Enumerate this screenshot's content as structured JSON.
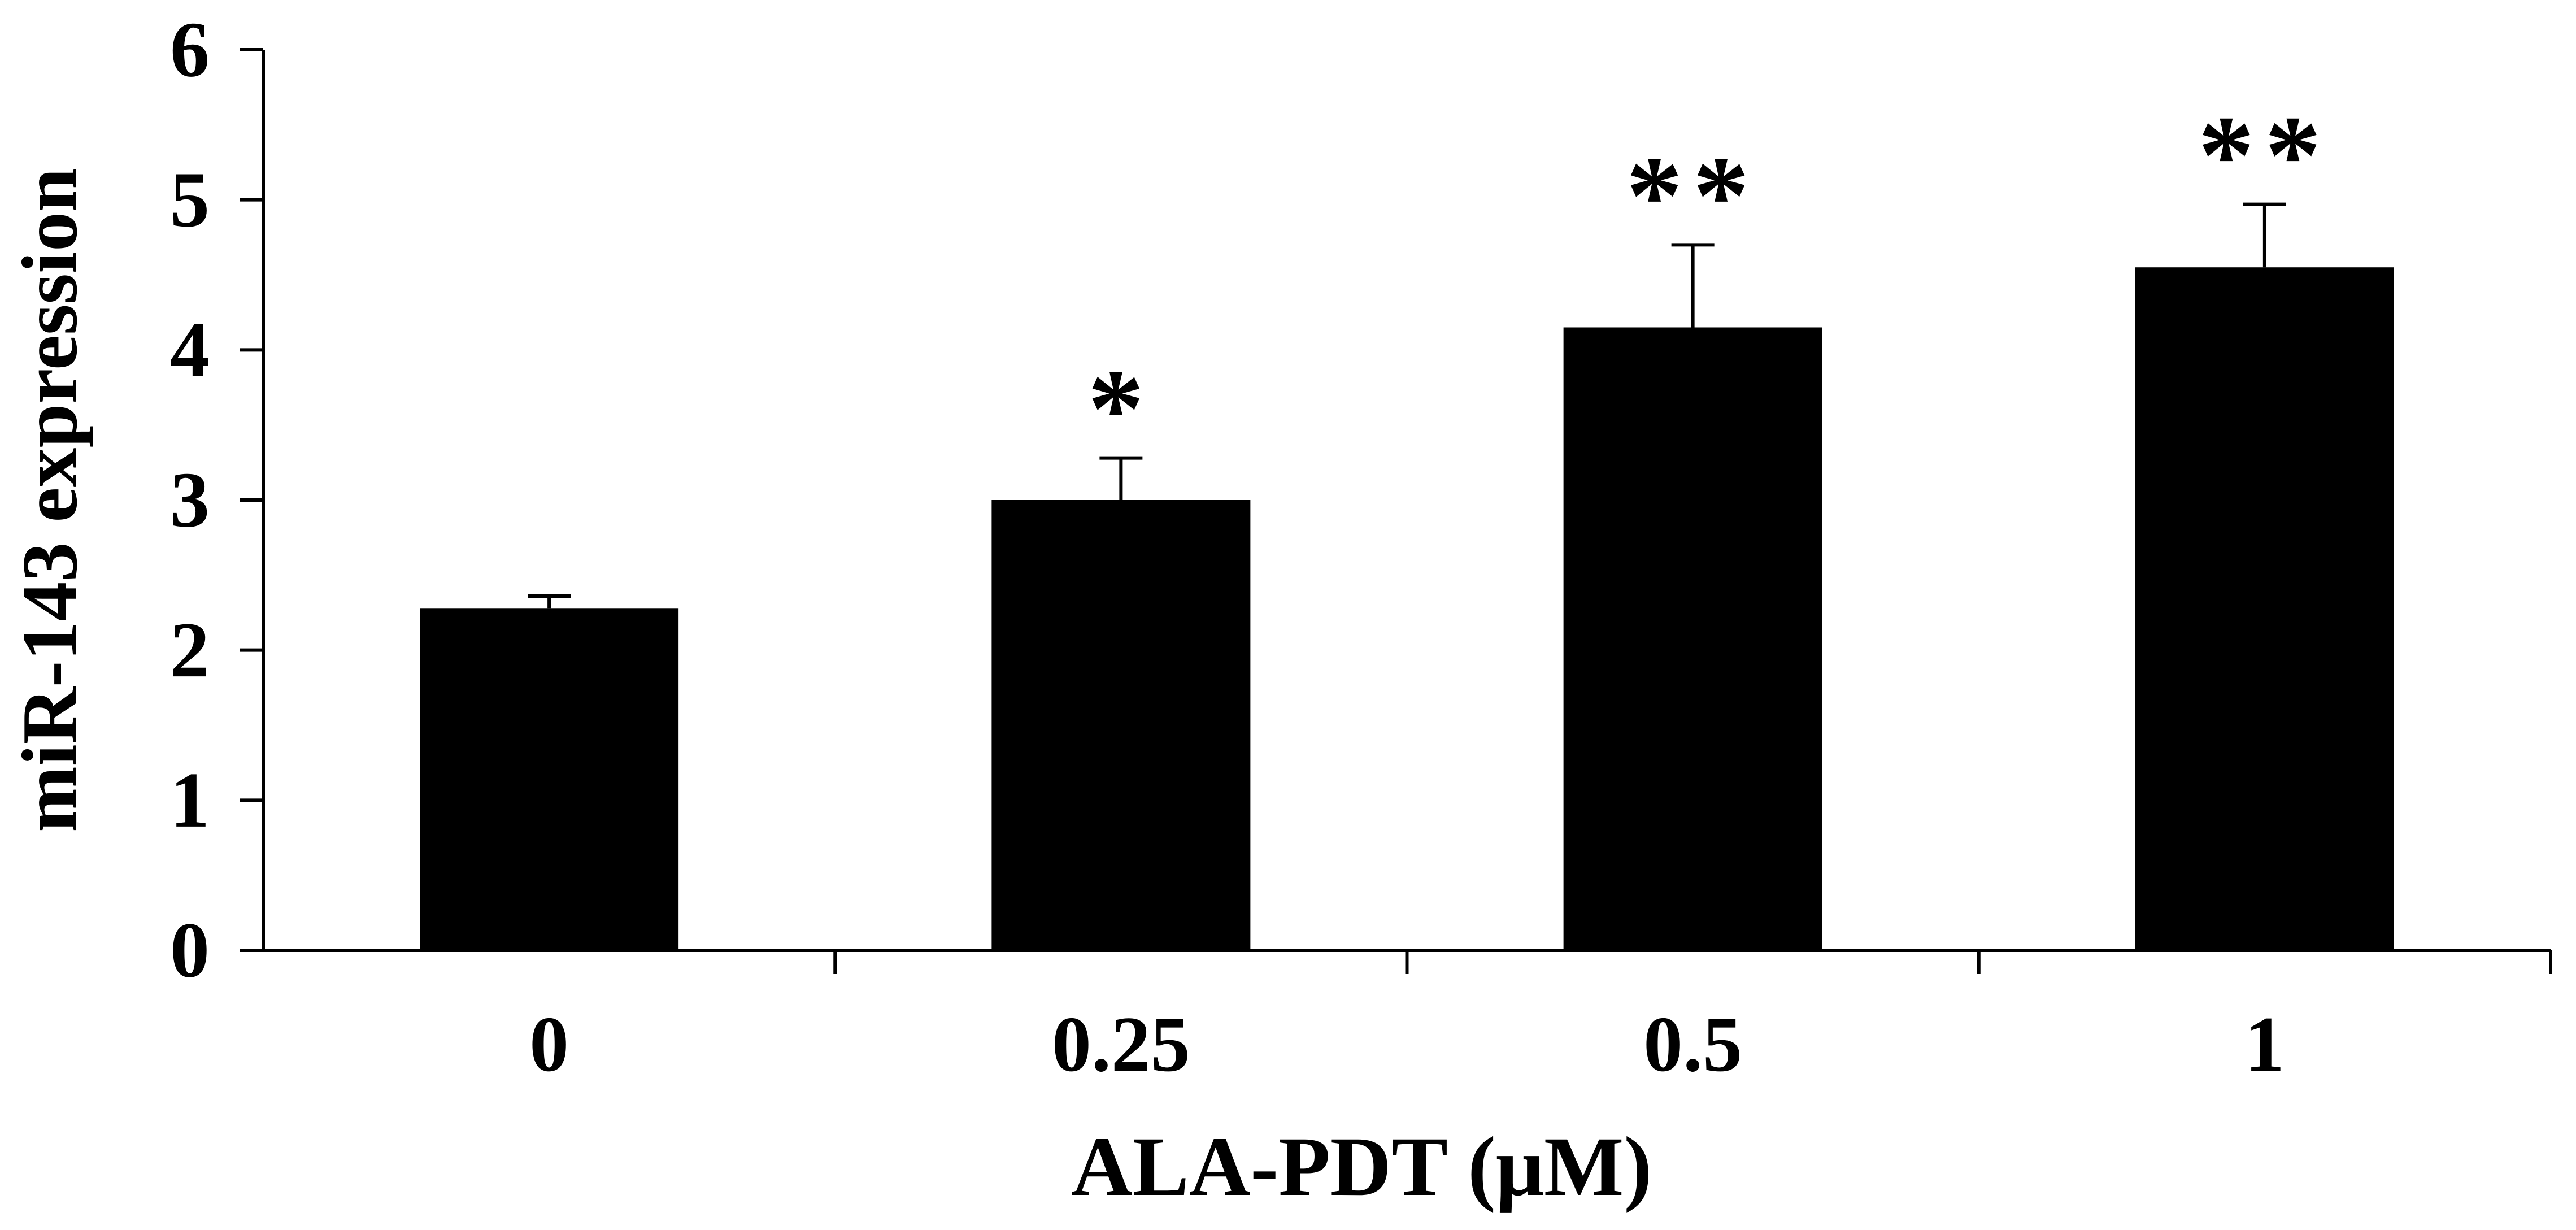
{
  "chart_data": {
    "type": "bar",
    "xlabel": "ALA-PDT (μM)",
    "ylabel": "miR-143 expression",
    "categories": [
      "0",
      "0.25",
      "0.5",
      "1"
    ],
    "values": [
      2.28,
      3.0,
      4.15,
      4.55
    ],
    "errors": [
      0.08,
      0.28,
      0.55,
      0.42
    ],
    "significance": [
      "",
      "*",
      "**",
      "**"
    ],
    "ylim": [
      0,
      6
    ],
    "yticks": [
      0,
      1,
      2,
      3,
      4,
      5,
      6
    ],
    "ytick_labels": [
      "0",
      "1",
      "2",
      "3",
      "4",
      "5",
      "6"
    ],
    "grid": false,
    "legend": "none",
    "colors": {
      "bar": "#000000",
      "axis": "#000000",
      "background": "#ffffff"
    }
  }
}
